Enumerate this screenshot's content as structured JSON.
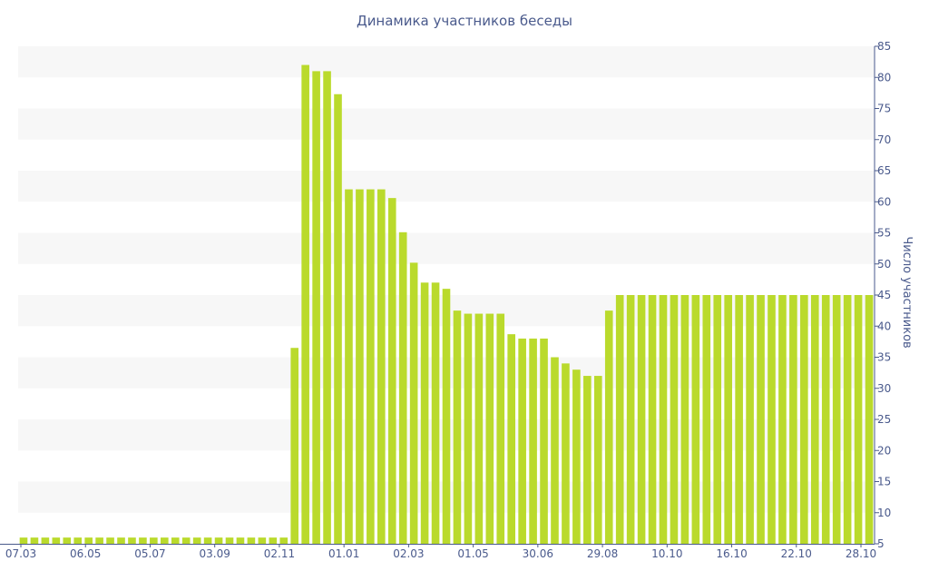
{
  "chart_data": {
    "type": "bar",
    "title": "Динамика участников беседы",
    "xlabel": "",
    "ylabel": "Число участников",
    "ylim": [
      5,
      85
    ],
    "yticks": [
      5,
      10,
      15,
      20,
      25,
      30,
      35,
      40,
      45,
      50,
      55,
      60,
      65,
      70,
      75,
      80,
      85
    ],
    "y_axis_side": "right",
    "grid": "alternating horizontal bands",
    "x_tick_labels": [
      "07.03",
      "06.05",
      "05.07",
      "03.09",
      "02.11",
      "01.01",
      "02.03",
      "01.05",
      "30.06",
      "29.08",
      "10.10",
      "16.10",
      "22.10",
      "28.10"
    ],
    "bar_color": "#bada2c",
    "band_color": "#f7f7f7",
    "text_color": "#4a5a8c",
    "values": [
      6,
      6,
      6,
      6,
      6,
      6,
      6,
      6,
      6,
      6,
      6,
      6,
      6,
      6,
      6,
      6,
      6,
      6,
      6,
      6,
      6,
      6,
      6,
      6,
      6,
      36.5,
      82,
      81,
      81,
      77.3,
      62,
      62,
      62,
      62,
      60.6,
      55.1,
      50.2,
      47,
      47,
      46,
      42.5,
      42,
      42,
      42,
      42,
      38.7,
      38,
      38,
      38,
      35,
      34,
      33,
      32,
      32,
      42.5,
      45,
      45,
      45,
      45,
      45,
      45,
      45,
      45,
      45,
      45,
      45,
      45,
      45,
      45,
      45,
      45,
      45,
      45,
      45,
      45,
      45,
      45,
      45,
      45
    ]
  }
}
